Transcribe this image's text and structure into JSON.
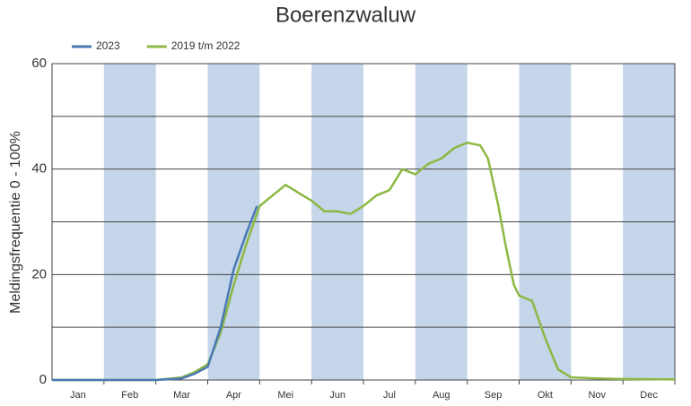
{
  "chart_data": {
    "type": "line",
    "title": "Boerenzwaluw",
    "y_label": "Meldingsfrequentie 0 - 100%",
    "xlim": [
      0,
      12
    ],
    "xticks": [
      {
        "value": 0.5,
        "label": "Jan"
      },
      {
        "value": 1.5,
        "label": "Feb"
      },
      {
        "value": 2.5,
        "label": "Mar"
      },
      {
        "value": 3.5,
        "label": "Apr"
      },
      {
        "value": 4.5,
        "label": "Mei"
      },
      {
        "value": 5.5,
        "label": "Jun"
      },
      {
        "value": 6.5,
        "label": "Jul"
      },
      {
        "value": 7.5,
        "label": "Aug"
      },
      {
        "value": 8.5,
        "label": "Sep"
      },
      {
        "value": 9.5,
        "label": "Okt"
      },
      {
        "value": 10.5,
        "label": "Nov"
      },
      {
        "value": 11.5,
        "label": "Dec"
      }
    ],
    "ylim": [
      0,
      60
    ],
    "yticks": [
      0,
      20,
      40,
      60
    ],
    "minor_yticks": [
      10,
      30,
      50
    ],
    "grid": true,
    "legend": "top-left",
    "series": [
      {
        "name": "2023",
        "color": "#4a78b5",
        "x": [
          0,
          1,
          2,
          2.5,
          2.75,
          3.0,
          3.25,
          3.5,
          3.75,
          3.95
        ],
        "values": [
          0,
          0,
          0,
          0.3,
          1.2,
          2.5,
          10,
          21,
          28,
          33
        ]
      },
      {
        "name": "2019 t/m 2022",
        "color": "#8db843",
        "x": [
          0,
          1,
          2,
          2.5,
          2.75,
          3.0,
          3.25,
          3.5,
          3.75,
          4.0,
          4.25,
          4.5,
          4.75,
          5.0,
          5.25,
          5.5,
          5.75,
          6.0,
          6.25,
          6.5,
          6.75,
          7.0,
          7.25,
          7.5,
          7.75,
          8.0,
          8.25,
          8.4,
          8.6,
          8.75,
          8.9,
          9.0,
          9.25,
          9.5,
          9.75,
          10.0,
          10.5,
          11.0,
          12.0
        ],
        "values": [
          0,
          0,
          0,
          0.5,
          1.5,
          3,
          9,
          18,
          26,
          33,
          35,
          37,
          35.5,
          34,
          32,
          32,
          31.5,
          33,
          35,
          36,
          40,
          39,
          41,
          42,
          44,
          45,
          44.5,
          42,
          33,
          25,
          18,
          16,
          15,
          8,
          2,
          0.5,
          0.3,
          0.2,
          0.1
        ]
      }
    ]
  }
}
